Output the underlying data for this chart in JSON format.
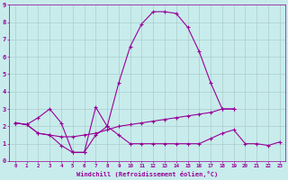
{
  "background_color": "#c8ecec",
  "line_color": "#990099",
  "grid_color": "#aacccc",
  "xlabel": "Windchill (Refroidissement éolien,°C)",
  "xlim": [
    -0.5,
    23.5
  ],
  "ylim": [
    0,
    9
  ],
  "xticks": [
    0,
    1,
    2,
    3,
    4,
    5,
    6,
    7,
    8,
    9,
    10,
    11,
    12,
    13,
    14,
    15,
    16,
    17,
    18,
    19,
    20,
    21,
    22,
    23
  ],
  "yticks": [
    0,
    1,
    2,
    3,
    4,
    5,
    6,
    7,
    8,
    9
  ],
  "series": [
    {
      "x": [
        0,
        1,
        2,
        3,
        4,
        5,
        6,
        7,
        8,
        9,
        10,
        11,
        12,
        13,
        14,
        15,
        16,
        17,
        18,
        19
      ],
      "y": [
        2.2,
        2.1,
        2.5,
        3.0,
        2.2,
        0.5,
        0.5,
        3.1,
        2.0,
        4.5,
        6.6,
        7.9,
        8.6,
        8.6,
        8.5,
        7.7,
        6.3,
        4.5,
        3.0,
        3.0
      ]
    },
    {
      "x": [
        0,
        1,
        2,
        3,
        4,
        5,
        6,
        7,
        8,
        9,
        10,
        11,
        12,
        13,
        14,
        15,
        16,
        17,
        18,
        19,
        20,
        21,
        22,
        23
      ],
      "y": [
        2.2,
        2.1,
        1.6,
        1.5,
        0.9,
        0.5,
        0.5,
        1.5,
        2.0,
        1.5,
        1.0,
        1.0,
        1.0,
        1.0,
        1.0,
        1.0,
        1.0,
        1.3,
        1.6,
        1.8,
        1.0,
        1.0,
        0.9,
        1.1
      ]
    },
    {
      "x": [
        0,
        1,
        2,
        3,
        4,
        5,
        6,
        7,
        8,
        9,
        10,
        11,
        12,
        13,
        14,
        15,
        16,
        17,
        18,
        19
      ],
      "y": [
        2.2,
        2.1,
        1.6,
        1.5,
        1.4,
        1.4,
        1.5,
        1.6,
        1.8,
        2.0,
        2.1,
        2.2,
        2.3,
        2.4,
        2.5,
        2.6,
        2.7,
        2.8,
        3.0,
        3.0
      ]
    }
  ]
}
